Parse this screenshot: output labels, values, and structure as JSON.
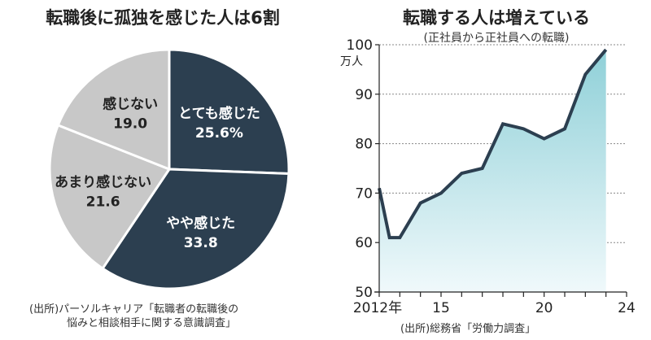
{
  "chart_data": [
    {
      "type": "pie",
      "title": "転職後に孤独を感じた人は6割",
      "slices": [
        {
          "label": "とても感じた",
          "value": 25.6,
          "value_text": "25.6%",
          "color": "#2c3f50",
          "text_color": "#ffffff"
        },
        {
          "label": "やや感じた",
          "value": 33.8,
          "value_text": "33.8",
          "color": "#2c3f50",
          "text_color": "#ffffff"
        },
        {
          "label": "あまり感じない",
          "value": 21.6,
          "value_text": "21.6",
          "color": "#c8c8c8",
          "text_color": "#222222"
        },
        {
          "label": "感じない",
          "value": 19.0,
          "value_text": "19.0",
          "color": "#c8c8c8",
          "text_color": "#222222"
        }
      ],
      "source": [
        "(出所)パーソルキャリア「転職者の転職後の",
        "悩みと相談相手に関する意識調査」"
      ]
    },
    {
      "type": "area",
      "title": "転職する人は増えている",
      "subtitle": "(正社員から正社員への転職)",
      "y_unit": "万人",
      "ylim": [
        50,
        100
      ],
      "y_ticks": [
        50,
        60,
        70,
        80,
        90,
        100
      ],
      "x_range": [
        2012,
        2024
      ],
      "x_tick_labels": [
        {
          "x": 2012,
          "label": "2012年"
        },
        {
          "x": 2015,
          "label": "15"
        },
        {
          "x": 2020,
          "label": "20"
        },
        {
          "x": 2024,
          "label": "24"
        }
      ],
      "grid": true,
      "series": [
        {
          "line_color": "#2c3f50",
          "fill_color_top": "#8fd0d8",
          "fill_color_bottom": "#f0f9fb",
          "points": [
            {
              "x": 2012.0,
              "y": 71
            },
            {
              "x": 2012.5,
              "y": 61
            },
            {
              "x": 2013.0,
              "y": 61
            },
            {
              "x": 2014.0,
              "y": 68
            },
            {
              "x": 2015.0,
              "y": 70
            },
            {
              "x": 2016.0,
              "y": 74
            },
            {
              "x": 2017.0,
              "y": 75
            },
            {
              "x": 2018.0,
              "y": 84
            },
            {
              "x": 2019.0,
              "y": 83
            },
            {
              "x": 2020.0,
              "y": 81
            },
            {
              "x": 2021.0,
              "y": 83
            },
            {
              "x": 2022.0,
              "y": 94
            },
            {
              "x": 2023.0,
              "y": 99
            }
          ]
        }
      ],
      "source": "(出所)総務省「労働力調査」"
    }
  ]
}
